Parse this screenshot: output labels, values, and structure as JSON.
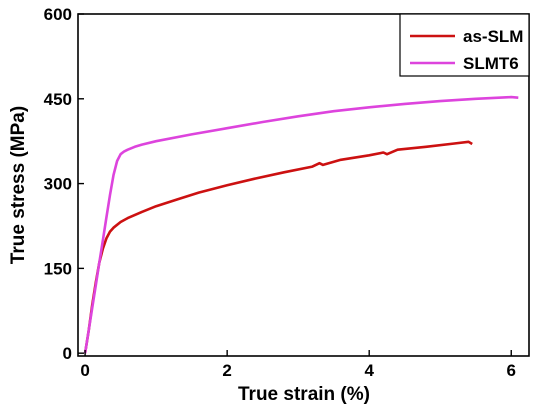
{
  "chart_data": {
    "type": "line",
    "xlabel": "True strain (%)",
    "ylabel": "True stress (MPa)",
    "xlim": [
      -0.1,
      6.25
    ],
    "ylim": [
      -5,
      600
    ],
    "x_ticks": [
      0,
      2,
      4,
      6
    ],
    "y_ticks": [
      0,
      150,
      300,
      450,
      600
    ],
    "x_tick_labels": [
      "0",
      "2",
      "4",
      "6"
    ],
    "y_tick_labels": [
      "0",
      "150",
      "300",
      "450",
      "600"
    ],
    "legend_position": "top-right",
    "grid": false,
    "series": [
      {
        "name": "as-SLM",
        "color": "#cc1111",
        "x": [
          0,
          0.05,
          0.1,
          0.15,
          0.2,
          0.25,
          0.3,
          0.35,
          0.4,
          0.5,
          0.6,
          0.8,
          1.0,
          1.3,
          1.6,
          2.0,
          2.4,
          2.8,
          3.2,
          3.3,
          3.35,
          3.6,
          4.0,
          4.2,
          4.25,
          4.4,
          4.8,
          5.2,
          5.4,
          5.45
        ],
        "y": [
          0,
          40,
          85,
          125,
          160,
          185,
          203,
          215,
          222,
          232,
          239,
          250,
          260,
          272,
          284,
          297,
          309,
          320,
          330,
          336,
          333,
          342,
          350,
          355,
          352,
          360,
          365,
          371,
          374,
          370
        ]
      },
      {
        "name": "SLMT6",
        "color": "#dd44dd",
        "x": [
          0,
          0.05,
          0.1,
          0.15,
          0.2,
          0.25,
          0.3,
          0.35,
          0.4,
          0.45,
          0.5,
          0.55,
          0.6,
          0.7,
          0.8,
          1.0,
          1.5,
          2.0,
          2.5,
          3.0,
          3.5,
          4.0,
          4.5,
          5.0,
          5.5,
          6.0,
          6.1
        ],
        "y": [
          0,
          40,
          80,
          120,
          160,
          200,
          240,
          280,
          315,
          340,
          352,
          357,
          360,
          365,
          369,
          375,
          387,
          398,
          409,
          419,
          428,
          435,
          441,
          446,
          450,
          453,
          452
        ]
      }
    ]
  }
}
